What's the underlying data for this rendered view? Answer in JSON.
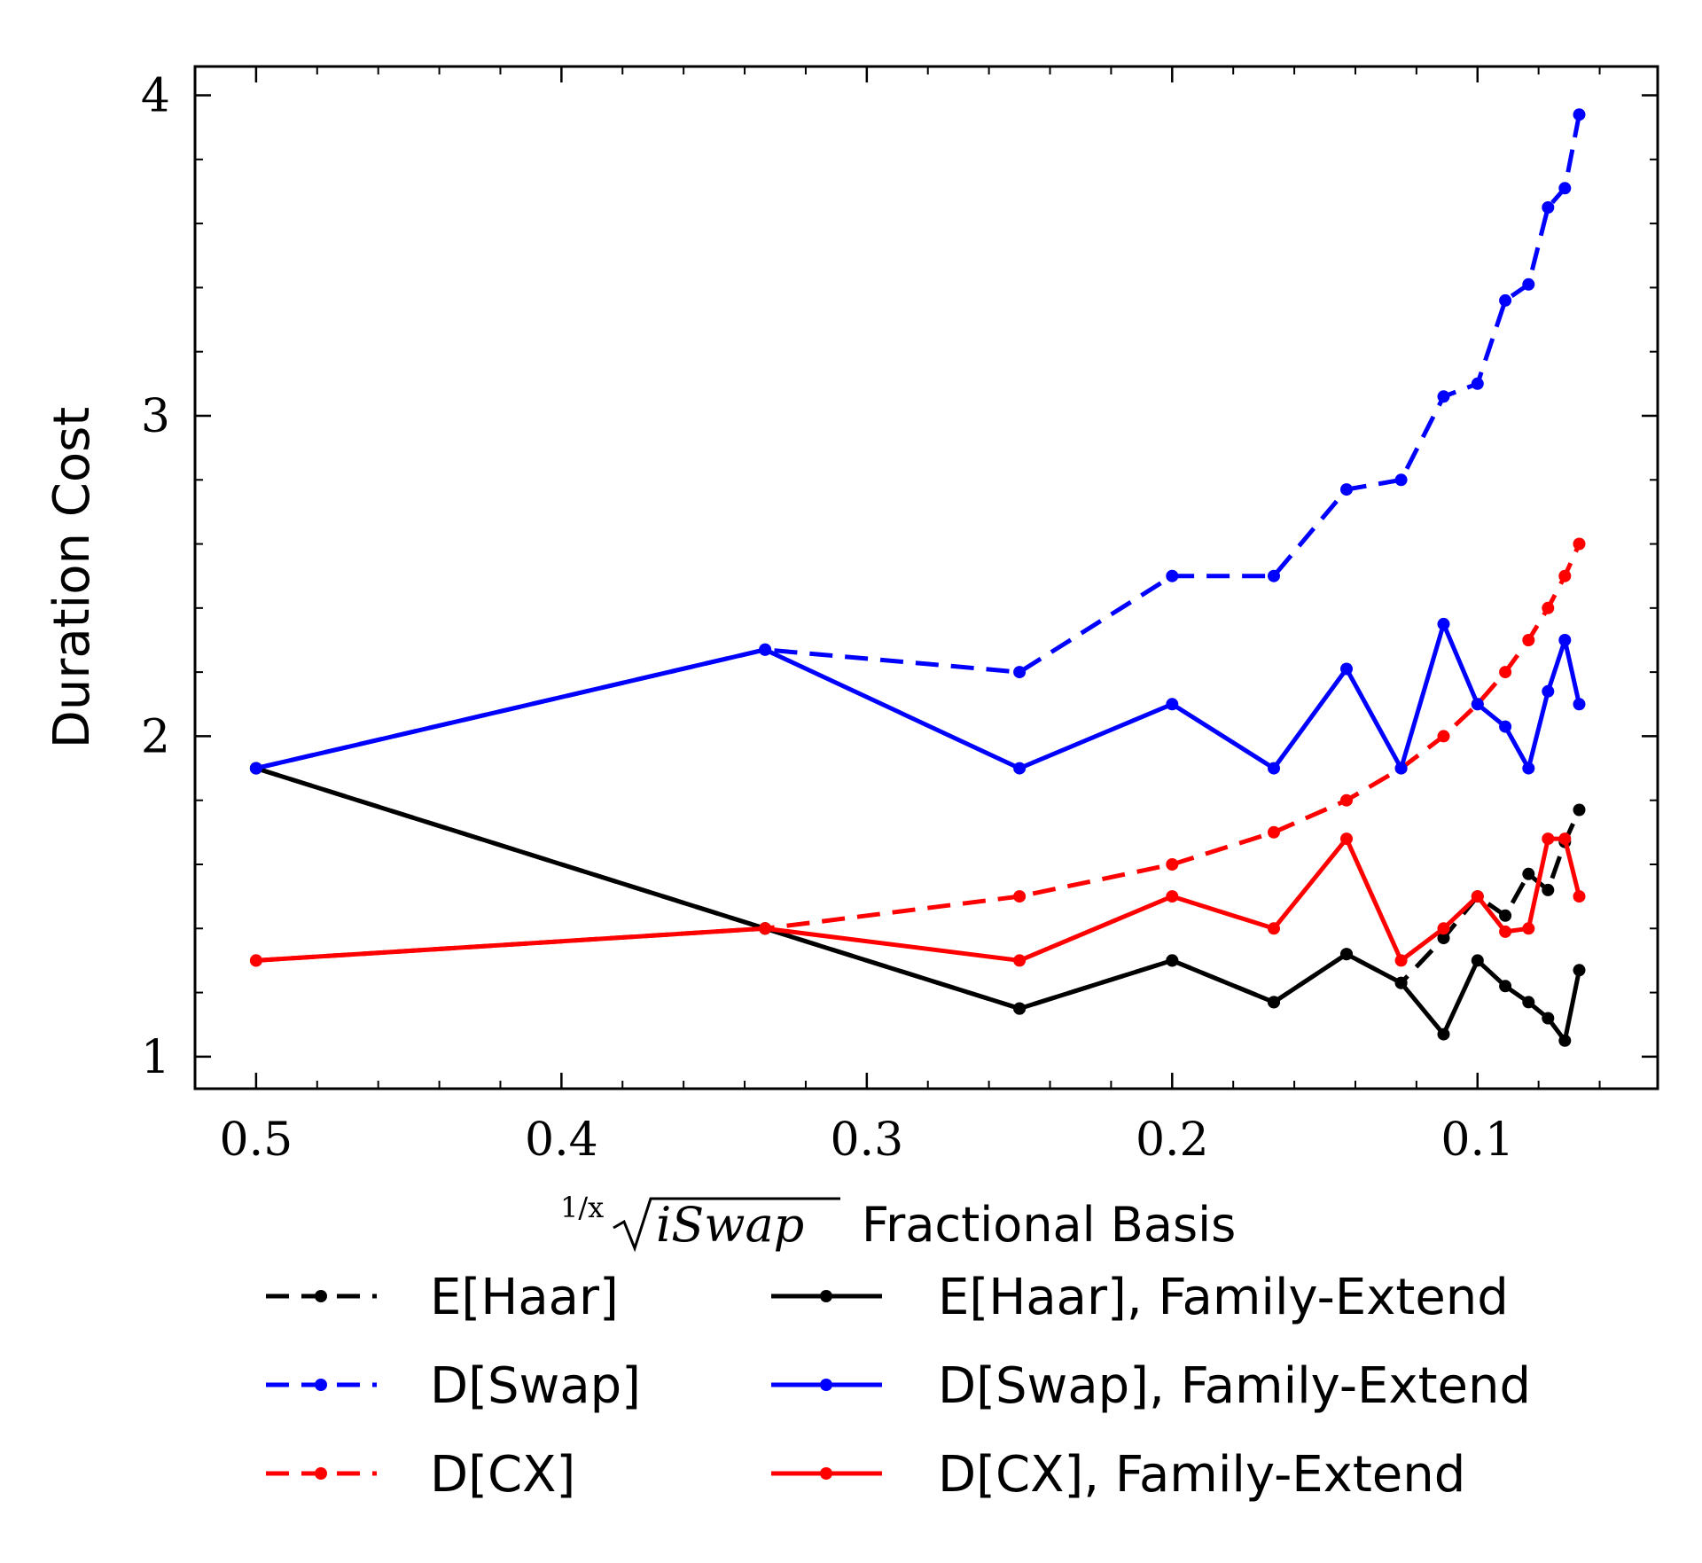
{
  "chart_data": {
    "type": "line",
    "title": "",
    "xlabel_math": {
      "sup": "1/x",
      "radicand": "iSwap"
    },
    "xlabel_text": "Fractional Basis",
    "ylabel": "Duration Cost",
    "xlim": [
      0.52,
      0.041
    ],
    "ylim": [
      0.9,
      4.09
    ],
    "x_reversed": true,
    "x_ticks": [
      0.5,
      0.4,
      0.3,
      0.2,
      0.1
    ],
    "x_tick_labels": [
      "0.5",
      "0.4",
      "0.3",
      "0.2",
      "0.1"
    ],
    "y_ticks": [
      1,
      2,
      3,
      4
    ],
    "y_tick_labels": [
      "1",
      "2",
      "3",
      "4"
    ],
    "grid": false,
    "legend_position": "bottom",
    "x": [
      0.5,
      0.3333,
      0.25,
      0.2,
      0.1667,
      0.1429,
      0.125,
      0.1111,
      0.1,
      0.0909,
      0.0833,
      0.0769,
      0.0714,
      0.0667
    ],
    "series": [
      {
        "name": "E[Haar]",
        "color": "#000000",
        "dash": "dashed",
        "values": [
          1.9,
          1.4,
          1.15,
          1.3,
          1.17,
          1.32,
          1.23,
          1.37,
          1.5,
          1.44,
          1.57,
          1.52,
          1.67,
          1.77
        ]
      },
      {
        "name": "D[Swap]",
        "color": "#0000ff",
        "dash": "dashed",
        "values": [
          1.9,
          2.27,
          2.2,
          2.5,
          2.5,
          2.77,
          2.8,
          3.06,
          3.1,
          3.36,
          3.41,
          3.65,
          3.71,
          3.94
        ]
      },
      {
        "name": "D[CX]",
        "color": "#ff0000",
        "dash": "dashed",
        "values": [
          1.3,
          1.4,
          1.5,
          1.6,
          1.7,
          1.8,
          1.9,
          2.0,
          2.1,
          2.2,
          2.3,
          2.4,
          2.5,
          2.6
        ]
      },
      {
        "name": "E[Haar], Family-Extend",
        "color": "#000000",
        "dash": "solid",
        "values": [
          1.9,
          1.4,
          1.15,
          1.3,
          1.17,
          1.32,
          1.23,
          1.07,
          1.3,
          1.22,
          1.17,
          1.12,
          1.05,
          1.27
        ]
      },
      {
        "name": "D[Swap], Family-Extend",
        "color": "#0000ff",
        "dash": "solid",
        "values": [
          1.9,
          2.27,
          1.9,
          2.1,
          1.9,
          2.21,
          1.9,
          2.35,
          2.1,
          2.03,
          1.9,
          2.14,
          2.3,
          2.1
        ]
      },
      {
        "name": "D[CX], Family-Extend",
        "color": "#ff0000",
        "dash": "solid",
        "values": [
          1.3,
          1.4,
          1.3,
          1.5,
          1.4,
          1.68,
          1.3,
          1.4,
          1.5,
          1.39,
          1.4,
          1.68,
          1.68,
          1.5
        ]
      }
    ]
  }
}
